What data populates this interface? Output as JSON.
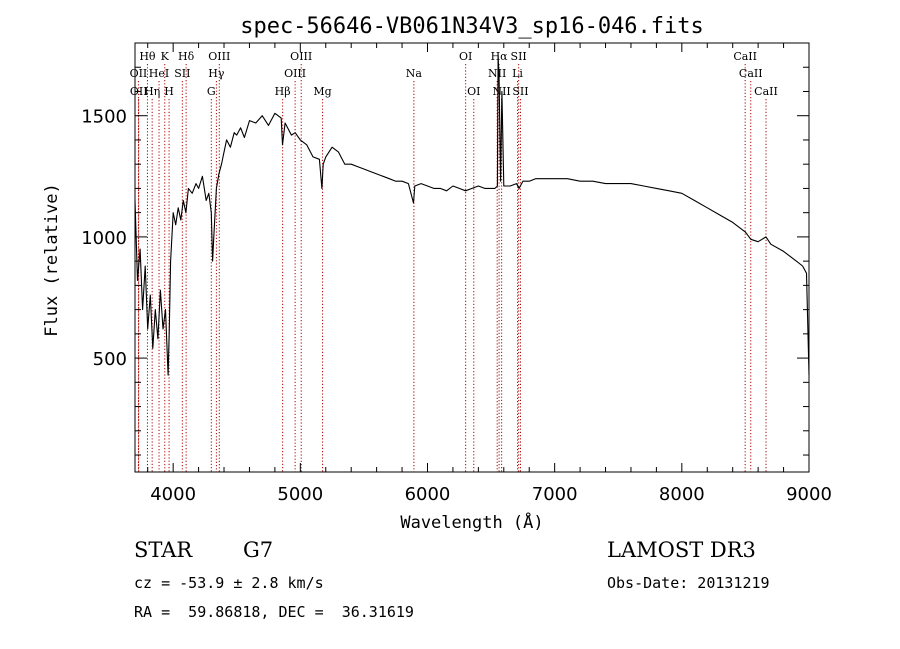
{
  "chart_data": {
    "type": "line",
    "title": "spec-56646-VB061N34V3_sp16-046.fits",
    "xlabel": "Wavelength (Å)",
    "ylabel": "Flux (relative)",
    "xlim": [
      3700,
      9000
    ],
    "ylim": [
      30,
      1800
    ],
    "x_ticks": [
      4000,
      5000,
      6000,
      7000,
      8000,
      9000
    ],
    "y_ticks": [
      500,
      1000,
      1500
    ],
    "grid": false,
    "series": [
      {
        "x": [
          3700,
          3720,
          3740,
          3760,
          3780,
          3800,
          3820,
          3840,
          3860,
          3880,
          3900,
          3920,
          3940,
          3960,
          3970,
          3980,
          4000,
          4020,
          4040,
          4060,
          4080,
          4100,
          4120,
          4150,
          4180,
          4200,
          4230,
          4260,
          4280,
          4300,
          4310,
          4320,
          4340,
          4360,
          4380,
          4400,
          4420,
          4450,
          4480,
          4500,
          4530,
          4560,
          4600,
          4650,
          4700,
          4750,
          4800,
          4850,
          4860,
          4880,
          4900,
          4930,
          4960,
          5000,
          5050,
          5100,
          5150,
          5170,
          5180,
          5200,
          5250,
          5300,
          5350,
          5400,
          5450,
          5500,
          5550,
          5600,
          5650,
          5700,
          5750,
          5800,
          5850,
          5890,
          5900,
          5950,
          6000,
          6050,
          6100,
          6150,
          6200,
          6250,
          6300,
          6350,
          6400,
          6450,
          6500,
          6530,
          6550,
          6555,
          6563,
          6570,
          6575,
          6585,
          6600,
          6650,
          6700,
          6720,
          6750,
          6800,
          6850,
          6900,
          6950,
          7000,
          7100,
          7200,
          7300,
          7400,
          7500,
          7600,
          7700,
          7800,
          7900,
          8000,
          8100,
          8200,
          8300,
          8400,
          8500,
          8542,
          8600,
          8662,
          8700,
          8800,
          8900,
          8950,
          8980,
          9000
        ],
        "y": [
          1150,
          820,
          950,
          700,
          880,
          620,
          760,
          540,
          700,
          580,
          780,
          620,
          700,
          430,
          620,
          900,
          1100,
          1050,
          1120,
          1070,
          1150,
          1100,
          1200,
          1180,
          1220,
          1200,
          1250,
          1150,
          1180,
          1100,
          900,
          1000,
          1200,
          1260,
          1300,
          1350,
          1400,
          1370,
          1430,
          1420,
          1450,
          1410,
          1480,
          1470,
          1500,
          1460,
          1510,
          1490,
          1380,
          1470,
          1450,
          1420,
          1430,
          1400,
          1380,
          1330,
          1320,
          1200,
          1300,
          1330,
          1370,
          1350,
          1300,
          1300,
          1290,
          1280,
          1270,
          1260,
          1250,
          1240,
          1230,
          1230,
          1220,
          1140,
          1210,
          1220,
          1210,
          1200,
          1200,
          1190,
          1210,
          1200,
          1190,
          1200,
          1210,
          1200,
          1200,
          1200,
          1210,
          1750,
          1650,
          1400,
          1230,
          1600,
          1210,
          1210,
          1220,
          1200,
          1230,
          1230,
          1240,
          1240,
          1240,
          1240,
          1240,
          1230,
          1230,
          1220,
          1220,
          1220,
          1210,
          1200,
          1190,
          1180,
          1150,
          1120,
          1090,
          1060,
          1020,
          990,
          980,
          1000,
          970,
          940,
          900,
          880,
          850,
          430
        ]
      }
    ],
    "line_markers": {
      "row1": [
        {
          "label": "Hθ",
          "x": 3798
        },
        {
          "label": "K",
          "x": 3934
        },
        {
          "label": "Hδ",
          "x": 4102
        },
        {
          "label": "OIII",
          "x": 4363
        },
        {
          "label": "OIII",
          "x": 5007
        },
        {
          "label": "OI",
          "x": 6300
        },
        {
          "label": "Hα",
          "x": 6563
        },
        {
          "label": "SII",
          "x": 6717
        },
        {
          "label": "CaII",
          "x": 8498
        }
      ],
      "row2": [
        {
          "label": "OII",
          "x": 3727
        },
        {
          "label": "HeI",
          "x": 3889
        },
        {
          "label": "SII",
          "x": 4072
        },
        {
          "label": "Hγ",
          "x": 4340
        },
        {
          "label": "OIII",
          "x": 4959
        },
        {
          "label": "Na",
          "x": 5893
        },
        {
          "label": "NII",
          "x": 6548
        },
        {
          "label": "Li",
          "x": 6708
        },
        {
          "label": "CaII",
          "x": 8542
        }
      ],
      "row3": [
        {
          "label": "OII",
          "x": 3729
        },
        {
          "label": "Hη",
          "x": 3835
        },
        {
          "label": "H",
          "x": 3968
        },
        {
          "label": "G",
          "x": 4300
        },
        {
          "label": "Hβ",
          "x": 4861
        },
        {
          "label": "Mg",
          "x": 5175
        },
        {
          "label": "OI",
          "x": 6364
        },
        {
          "label": "NII",
          "x": 6583
        },
        {
          "label": "SII",
          "x": 6731
        },
        {
          "label": "CaII",
          "x": 8662
        }
      ]
    },
    "marker_color": "#b00000",
    "line_color": "#000000"
  },
  "info": {
    "object_class": "STAR",
    "subclass": "G7",
    "survey": "LAMOST DR3",
    "cz": "cz = -53.9 ± 2.8 km/s",
    "obs_date": "Obs-Date: 20131219",
    "coords": "RA =  59.86818, DEC =  36.31619"
  }
}
